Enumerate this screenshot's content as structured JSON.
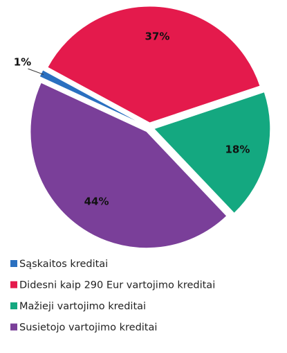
{
  "chart_data": {
    "type": "pie",
    "categories": [
      "Sąskaitos kreditai",
      "Didesni kaip 290 Eur vartojimo kreditai",
      "Mažieji vartojimo kreditai",
      "Susietojo vartojimo kreditai"
    ],
    "values": [
      1,
      37,
      18,
      44
    ],
    "value_labels": [
      "1%",
      "37%",
      "18%",
      "44%"
    ],
    "colors": [
      "#2a70c0",
      "#e41a4c",
      "#14a880",
      "#7a3f99"
    ],
    "legend": "bottom"
  }
}
